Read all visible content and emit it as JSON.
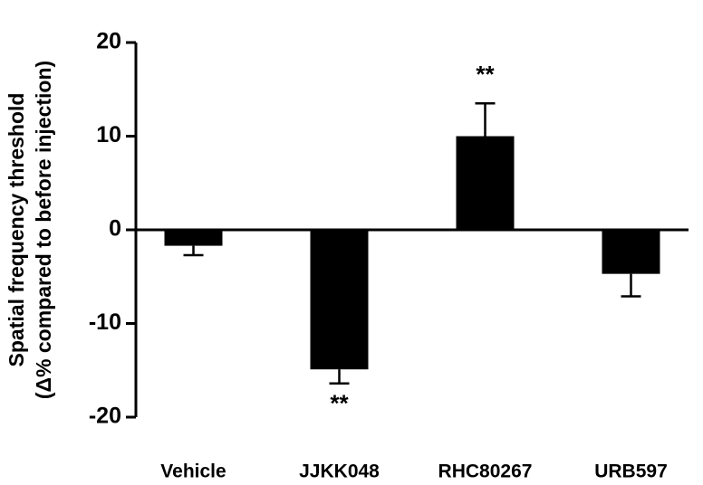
{
  "chart_data": {
    "type": "bar",
    "ylabel": [
      "Spatial frequency threshold",
      "(Δ% compared to before injection)"
    ],
    "categories": [
      "Vehicle",
      "JJKK048",
      "RHC80267",
      "URB597"
    ],
    "values": [
      -1.7,
      -14.9,
      10.0,
      -4.7
    ],
    "errors": [
      1.0,
      1.5,
      3.5,
      2.4
    ],
    "significance": [
      null,
      "**",
      "**",
      null
    ],
    "color": "#000000",
    "ylim": [
      -20,
      20
    ],
    "yticks": [
      -20,
      -10,
      0,
      10,
      20
    ]
  }
}
